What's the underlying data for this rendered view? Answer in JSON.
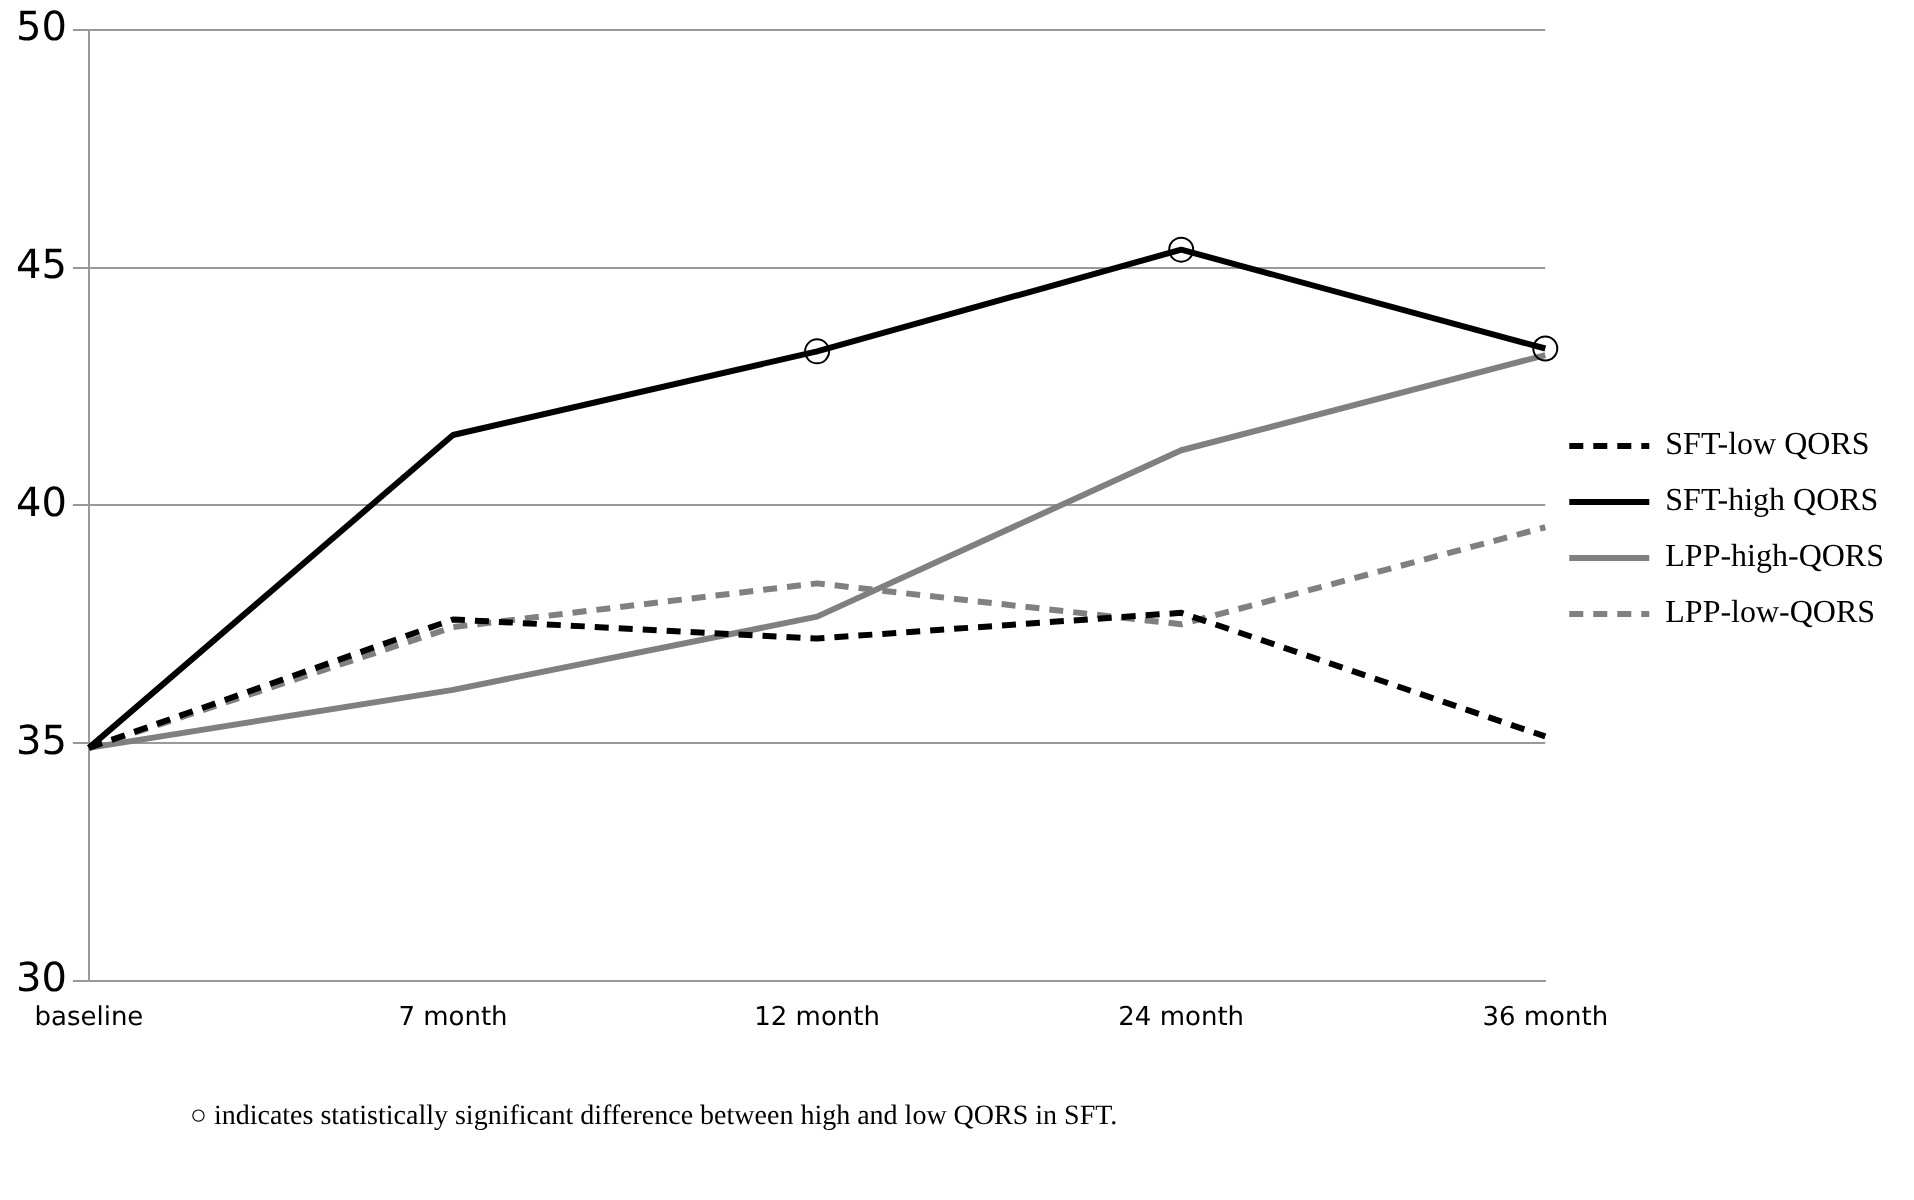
{
  "chart_data": {
    "type": "line",
    "categories": [
      "baseline",
      "7 month",
      "12 month",
      "24 month",
      "36 month"
    ],
    "series": [
      {
        "name": "SFT-low QORS",
        "color": "#000000",
        "line_style": "dashed",
        "values": [
          34.9,
          37.6,
          37.2,
          37.74,
          35.14
        ]
      },
      {
        "name": "SFT-high QORS",
        "color": "#000000",
        "line_style": "solid",
        "values": [
          34.9,
          41.48,
          43.24,
          45.38,
          43.3
        ]
      },
      {
        "name": "LPP-high-QORS",
        "color": "#808080",
        "line_style": "solid",
        "values": [
          34.9,
          36.12,
          37.66,
          41.16,
          43.16
        ]
      },
      {
        "name": "LPP-low-QORS",
        "color": "#808080",
        "line_style": "dashed",
        "values": [
          34.9,
          37.44,
          38.36,
          37.5,
          39.54
        ]
      },
      {
        "type": "scatter",
        "color": "#000000",
        "marker": "circle",
        "x": [
          "12 month",
          "24 month",
          "36 month"
        ],
        "values": [
          43.24,
          45.38,
          43.3
        ]
      }
    ],
    "ylim": [
      30,
      50
    ],
    "yticks": [
      30,
      35,
      40,
      45,
      50
    ],
    "grid": "y",
    "legend": "right",
    "marker": "none",
    "annotations": [
      "○ indicates statistically significant difference between high and low QORS in SFT."
    ]
  }
}
